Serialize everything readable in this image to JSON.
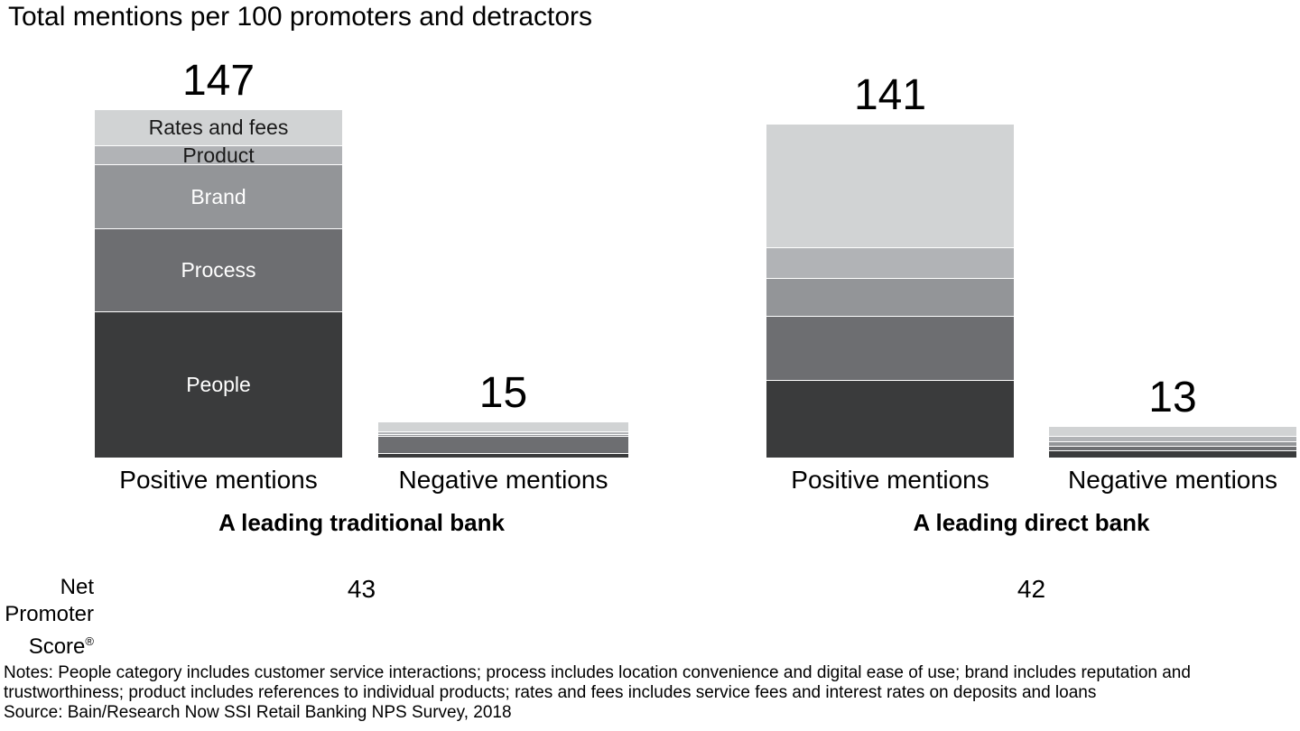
{
  "title": "Total mentions per 100 promoters and detractors",
  "chart_data": {
    "type": "bar",
    "stacked": true,
    "value_unit": "mentions per 100 promoters and detractors",
    "categories_top_to_bottom": [
      "Rates and fees",
      "Product",
      "Brand",
      "Process",
      "People"
    ],
    "palette": {
      "Rates and fees": "#d1d3d4",
      "Product": "#b1b3b6",
      "Brand": "#939598",
      "Process": "#6d6e71",
      "People": "#3a3b3c"
    },
    "label_text_colors": {
      "Rates and fees": "#1a1a1a",
      "Product": "#1a1a1a",
      "Brand": "#ffffff",
      "Process": "#ffffff",
      "People": "#ffffff"
    },
    "groups": [
      {
        "name": "A leading traditional bank",
        "nps_value": "43",
        "bars": [
          {
            "label": "Positive mentions",
            "total": "147",
            "show_segment_labels": true,
            "segments": [
              {
                "category": "Rates and fees",
                "value": 15
              },
              {
                "category": "Product",
                "value": 8
              },
              {
                "category": "Brand",
                "value": 27
              },
              {
                "category": "Process",
                "value": 35
              },
              {
                "category": "People",
                "value": 62
              }
            ]
          },
          {
            "label": "Negative mentions",
            "total": "15",
            "show_segment_labels": false,
            "segments": [
              {
                "category": "Rates and fees",
                "value": 4
              },
              {
                "category": "Product",
                "value": 1
              },
              {
                "category": "Brand",
                "value": 1
              },
              {
                "category": "Process",
                "value": 7
              },
              {
                "category": "People",
                "value": 2
              }
            ]
          }
        ]
      },
      {
        "name": "A leading direct bank",
        "nps_value": "42",
        "bars": [
          {
            "label": "Positive mentions",
            "total": "141",
            "show_segment_labels": false,
            "segments": [
              {
                "category": "Rates and fees",
                "value": 52
              },
              {
                "category": "Product",
                "value": 13
              },
              {
                "category": "Brand",
                "value": 16
              },
              {
                "category": "Process",
                "value": 27
              },
              {
                "category": "People",
                "value": 33
              }
            ]
          },
          {
            "label": "Negative mentions",
            "total": "13",
            "show_segment_labels": false,
            "segments": [
              {
                "category": "Rates and fees",
                "value": 4
              },
              {
                "category": "Product",
                "value": 2
              },
              {
                "category": "Brand",
                "value": 2
              },
              {
                "category": "Process",
                "value": 2
              },
              {
                "category": "People",
                "value": 3
              }
            ]
          }
        ]
      }
    ]
  },
  "nps_label": {
    "line1": "Net",
    "line2": "Promoter",
    "line3": "Score",
    "registered": "®"
  },
  "notes": "Notes: People category includes customer service interactions; process includes location convenience and digital ease of use; brand includes reputation and trustworthiness; product includes references to individual products; rates and fees includes service fees and interest rates on deposits and loans",
  "source": "Source: Bain/Research Now SSI Retail Banking NPS Survey, 2018"
}
